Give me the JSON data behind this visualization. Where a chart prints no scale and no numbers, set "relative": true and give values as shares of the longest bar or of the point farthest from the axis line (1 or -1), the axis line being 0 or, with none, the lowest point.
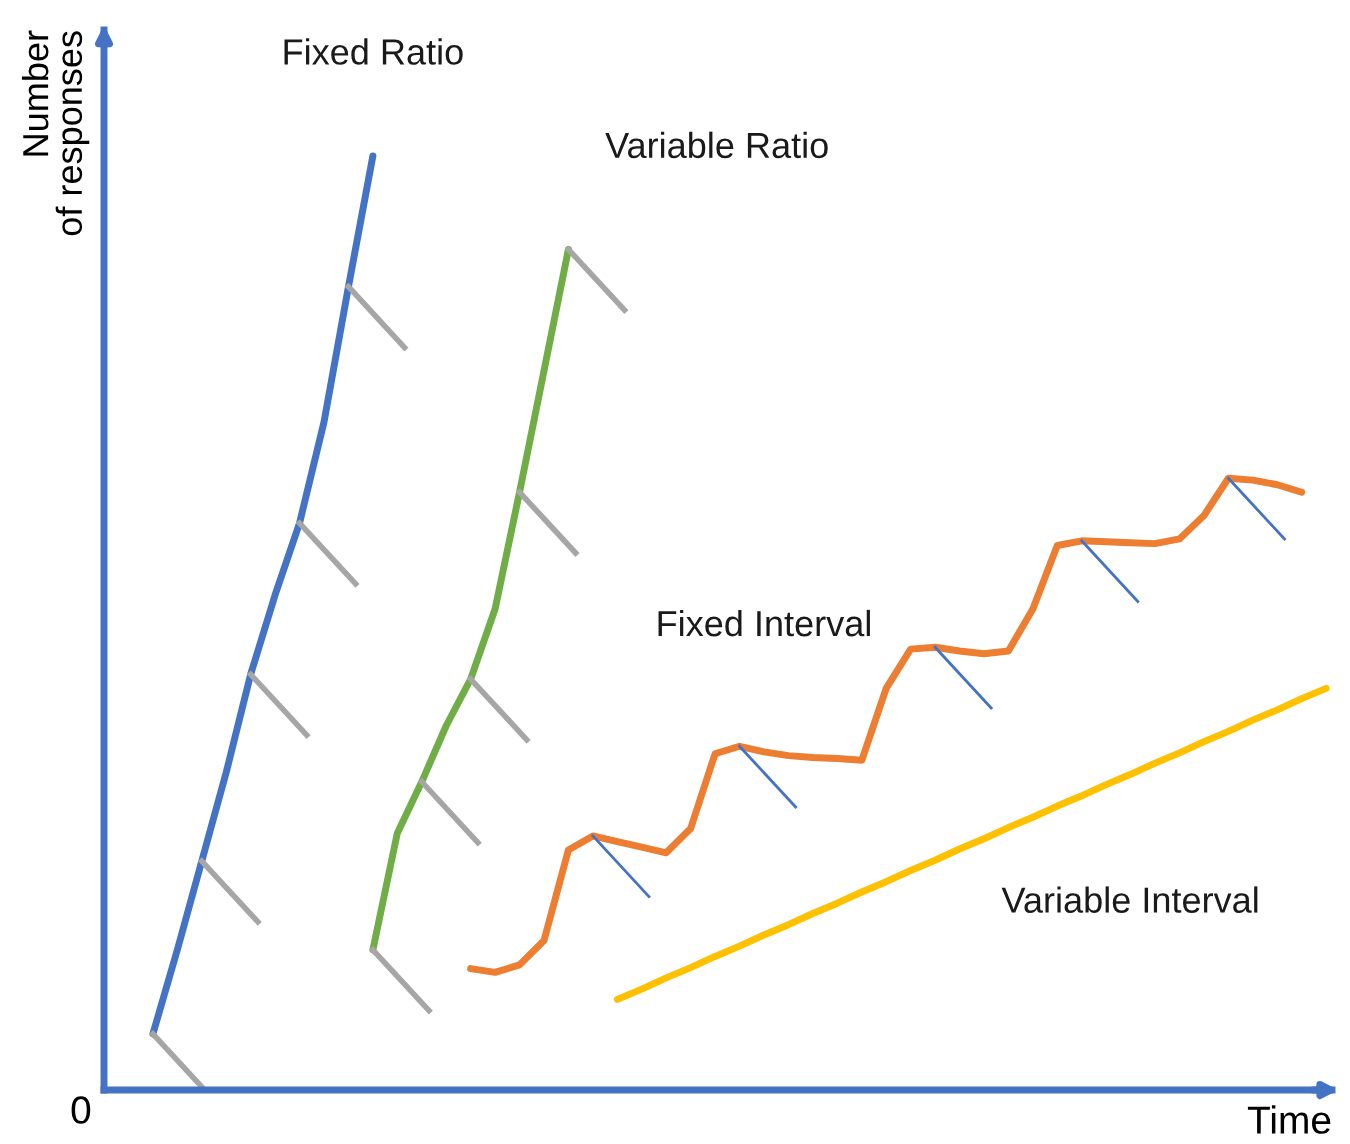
{
  "chart_data": {
    "type": "line",
    "relative": true,
    "xlabel": "Time",
    "ylabel": "Number\nof responses",
    "annotations": [
      "0"
    ],
    "marker": "none",
    "line_style": "solid",
    "categories": [
      null,
      null,
      null,
      null,
      null,
      null,
      null,
      null,
      null,
      null,
      null,
      null,
      null,
      null,
      null,
      null,
      null,
      null,
      null,
      null,
      null,
      null,
      null,
      null,
      null,
      null,
      null,
      null,
      null,
      null,
      null,
      null,
      null,
      null,
      null,
      null,
      null,
      null,
      null,
      null,
      null,
      null,
      null,
      null,
      null,
      null,
      null,
      null,
      null,
      null,
      null
    ],
    "series": [
      {
        "name": "Fixed Ratio",
        "color": "#4472c4",
        "values": [
          null,
          null,
          0.06,
          0.15,
          0.245,
          0.34,
          0.445,
          0.53,
          0.607,
          0.715,
          0.86,
          1.0,
          null,
          null,
          null,
          null,
          null,
          null,
          null,
          null,
          null,
          null,
          null,
          null,
          null,
          null,
          null,
          null,
          null,
          null,
          null,
          null,
          null,
          null,
          null,
          null,
          null,
          null,
          null,
          null,
          null,
          null,
          null,
          null,
          null,
          null,
          null,
          null,
          null,
          null,
          null
        ]
      },
      {
        "name": "Variable Ratio",
        "color": "#70ad47",
        "values": [
          null,
          null,
          null,
          null,
          null,
          null,
          null,
          null,
          null,
          null,
          null,
          0.15,
          0.275,
          0.33,
          0.39,
          0.44,
          0.515,
          0.64,
          0.77,
          0.9,
          null,
          null,
          null,
          null,
          null,
          null,
          null,
          null,
          null,
          null,
          null,
          null,
          null,
          null,
          null,
          null,
          null,
          null,
          null,
          null,
          null,
          null,
          null,
          null,
          null,
          null,
          null,
          null,
          null,
          null,
          null
        ]
      },
      {
        "name": "Fixed Interval",
        "color": "#ed7d31",
        "values": [
          null,
          null,
          null,
          null,
          null,
          null,
          null,
          null,
          null,
          null,
          null,
          null,
          null,
          null,
          null,
          0.13,
          0.126,
          0.134,
          0.16,
          0.257,
          0.272,
          0.266,
          0.26,
          0.254,
          0.28,
          0.36,
          0.368,
          0.362,
          0.358,
          0.356,
          0.355,
          0.353,
          0.43,
          0.472,
          0.474,
          0.47,
          0.467,
          0.47,
          0.515,
          0.583,
          0.588,
          0.587,
          0.586,
          0.585,
          0.59,
          0.615,
          0.655,
          0.653,
          0.648,
          0.64,
          null
        ]
      },
      {
        "name": "Variable Interval",
        "color": "#ffc000",
        "values": [
          null,
          null,
          null,
          null,
          null,
          null,
          null,
          null,
          null,
          null,
          null,
          null,
          null,
          null,
          null,
          null,
          null,
          null,
          null,
          null,
          null,
          0.097,
          0.108,
          0.12,
          0.131,
          0.143,
          0.154,
          0.166,
          0.177,
          0.189,
          0.2,
          0.212,
          0.223,
          0.235,
          0.246,
          0.258,
          0.269,
          0.281,
          0.292,
          0.304,
          0.315,
          0.327,
          0.338,
          0.35,
          0.361,
          0.373,
          0.384,
          0.396,
          0.407,
          0.419,
          0.43
        ]
      }
    ]
  }
}
